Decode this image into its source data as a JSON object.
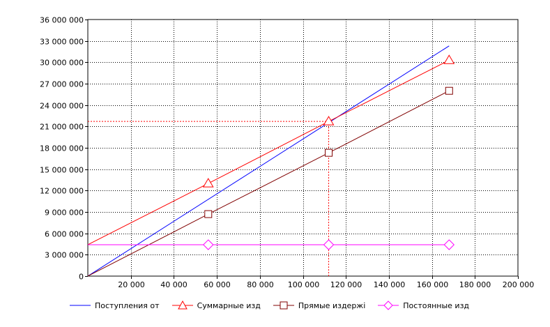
{
  "chart_data": {
    "type": "line",
    "xlim": [
      0,
      200000
    ],
    "ylim": [
      0,
      36000000
    ],
    "x_ticks": [
      "20 000",
      "40 000",
      "60 000",
      "80 000",
      "100 000",
      "120 000",
      "140 000",
      "160 000",
      "180 000",
      "200 000"
    ],
    "y_ticks": [
      "0",
      "3 000 000",
      "6 000 000",
      "9 000 000",
      "12 000 000",
      "15 000 000",
      "18 000 000",
      "21 000 000",
      "24 000 000",
      "27 000 000",
      "30 000 000",
      "33 000 000",
      "36 000 000"
    ],
    "grid": true,
    "legend_position": "bottom",
    "series": [
      {
        "name": "Поступления от",
        "color": "#0000ff",
        "marker": "none",
        "points": [
          [
            0,
            0
          ],
          [
            168000,
            32300000
          ]
        ]
      },
      {
        "name": "Суммарные изд",
        "color": "#ff0000",
        "marker": "triangle",
        "points": [
          [
            0,
            4400000
          ],
          [
            56000,
            13000000
          ],
          [
            112000,
            21700000
          ],
          [
            168000,
            30300000
          ]
        ],
        "marker_points": [
          [
            56000,
            13000000
          ],
          [
            112000,
            21700000
          ],
          [
            168000,
            30300000
          ]
        ]
      },
      {
        "name": "Прямые издержі",
        "color": "#800000",
        "marker": "square",
        "points": [
          [
            0,
            0
          ],
          [
            56000,
            8700000
          ],
          [
            112000,
            17300000
          ],
          [
            168000,
            26000000
          ]
        ],
        "marker_points": [
          [
            56000,
            8700000
          ],
          [
            112000,
            17300000
          ],
          [
            168000,
            26000000
          ]
        ]
      },
      {
        "name": "Постоянные изд",
        "color": "#ff00ff",
        "marker": "diamond",
        "points": [
          [
            0,
            4400000
          ],
          [
            56000,
            4400000
          ],
          [
            112000,
            4400000
          ],
          [
            168000,
            4400000
          ]
        ],
        "marker_points": [
          [
            56000,
            4400000
          ],
          [
            112000,
            4400000
          ],
          [
            168000,
            4400000
          ]
        ]
      }
    ],
    "break_even": {
      "x": 112000,
      "y": 21700000,
      "color": "#ff0000"
    }
  }
}
